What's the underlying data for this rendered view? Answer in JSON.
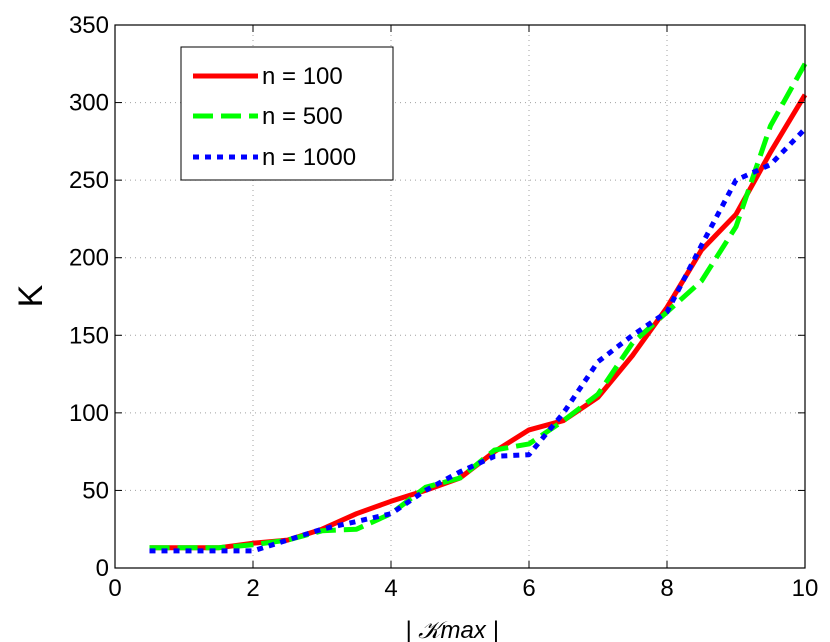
{
  "chart_data": {
    "type": "line",
    "title": "",
    "xlabel": "| 𝒦max |",
    "ylabel": "K",
    "xlim": [
      0,
      10
    ],
    "ylim": [
      0,
      350
    ],
    "xticks": [
      0,
      2,
      4,
      6,
      8,
      10
    ],
    "yticks": [
      0,
      50,
      100,
      150,
      200,
      250,
      300,
      350
    ],
    "grid": true,
    "legend_position": "top-left",
    "series": [
      {
        "name": "n = 100",
        "color": "#ff0000",
        "style": "solid",
        "x": [
          0.5,
          1,
          1.5,
          2,
          2.5,
          3,
          3.5,
          4,
          4.5,
          5,
          5.5,
          6,
          6.5,
          7,
          7.5,
          8,
          8.5,
          9,
          9.5,
          10
        ],
        "y": [
          13,
          13,
          13,
          16,
          18,
          25,
          35,
          43,
          50,
          58,
          75,
          89,
          95,
          110,
          137,
          168,
          205,
          228,
          268,
          305
        ]
      },
      {
        "name": "n = 500",
        "color": "#00ff00",
        "style": "dashed",
        "x": [
          0.5,
          1,
          1.5,
          2,
          2.5,
          3,
          3.5,
          4,
          4.5,
          5,
          5.5,
          6,
          6.5,
          7,
          7.5,
          8,
          8.5,
          9,
          9.5,
          10
        ],
        "y": [
          13,
          13,
          13,
          15,
          18,
          24,
          25,
          35,
          52,
          58,
          76,
          80,
          95,
          112,
          145,
          165,
          185,
          220,
          285,
          325
        ]
      },
      {
        "name": "n = 1000",
        "color": "#0000ff",
        "style": "dotted",
        "x": [
          0.5,
          1,
          1.5,
          2,
          2.5,
          3,
          3.5,
          4,
          4.5,
          5,
          5.5,
          6,
          6.5,
          7,
          7.5,
          8,
          8.5,
          9,
          9.5,
          10
        ],
        "y": [
          11,
          11,
          11,
          11,
          18,
          25,
          30,
          35,
          50,
          62,
          72,
          73,
          100,
          133,
          150,
          165,
          208,
          250,
          260,
          283
        ]
      }
    ]
  }
}
